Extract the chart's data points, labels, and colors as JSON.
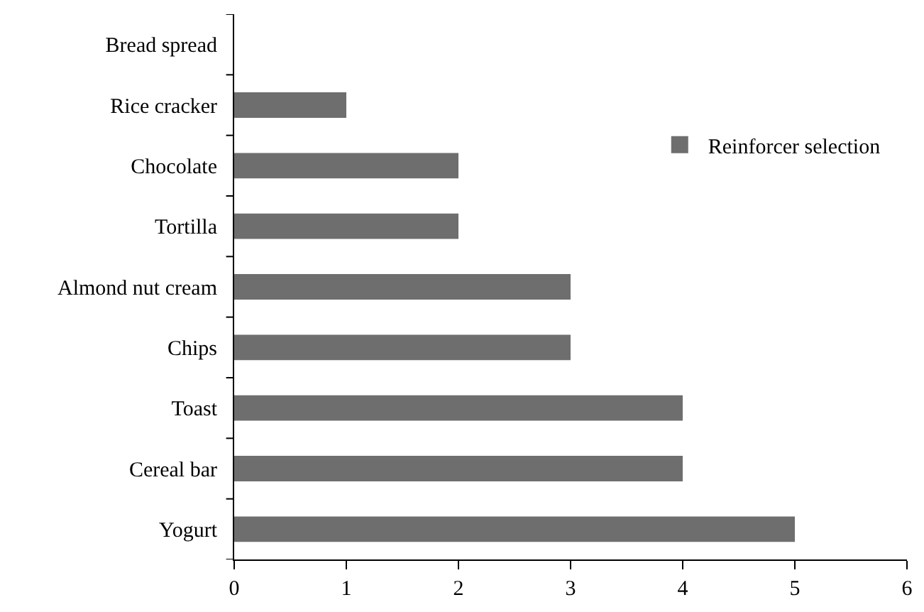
{
  "chart_data": {
    "type": "bar",
    "orientation": "horizontal",
    "categories": [
      "Bread spread",
      "Rice cracker",
      "Chocolate",
      "Tortilla",
      "Almond nut cream",
      "Chips",
      "Toast",
      "Cereal bar",
      "Yogurt"
    ],
    "series": [
      {
        "name": "Reinforcer selection",
        "color": "#6e6e6e",
        "values": [
          0,
          1,
          2,
          2,
          3,
          3,
          4,
          4,
          5
        ]
      }
    ],
    "xlim": [
      0,
      6
    ],
    "xticks": [
      0,
      1,
      2,
      3,
      4,
      5,
      6
    ],
    "grid": false,
    "legend": "right"
  }
}
